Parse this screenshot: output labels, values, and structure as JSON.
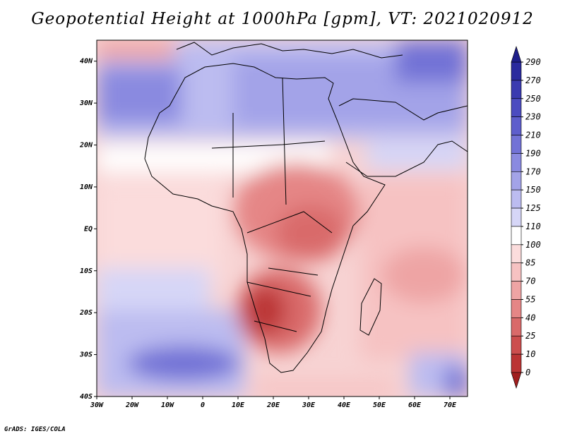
{
  "title": "Geopotential Height at 1000hPa [gpm], VT: 2021020912",
  "footer": "GrADS: IGES/COLA",
  "map": {
    "x_ticks": [
      "30W",
      "20W",
      "10W",
      "0",
      "10E",
      "20E",
      "30E",
      "40E",
      "50E",
      "60E",
      "70E"
    ],
    "y_ticks": [
      "40N",
      "30N",
      "20N",
      "10N",
      "EQ",
      "10S",
      "20S",
      "30S",
      "40S"
    ],
    "lon_range": [
      -30,
      75
    ],
    "lat_range": [
      -40,
      45
    ]
  },
  "colorbar": {
    "levels": [
      "290",
      "270",
      "250",
      "230",
      "210",
      "190",
      "170",
      "150",
      "125",
      "110",
      "100",
      "85",
      "70",
      "55",
      "40",
      "25",
      "10",
      "0"
    ],
    "colors": [
      "#2a2a9e",
      "#3b3bb0",
      "#4c4cc0",
      "#5e5ecc",
      "#7272d6",
      "#8a8ae0",
      "#a3a3e8",
      "#bcbcf0",
      "#d6d6f7",
      "#ffffff",
      "#fbdcdc",
      "#f6c2c2",
      "#eea4a4",
      "#e58686",
      "#d96a6a",
      "#cc4e4e",
      "#bb3434"
    ]
  },
  "colors": {
    "coast": "#000000",
    "extreme_high": "#1f1f8a",
    "extreme_low": "#a01e1e"
  }
}
